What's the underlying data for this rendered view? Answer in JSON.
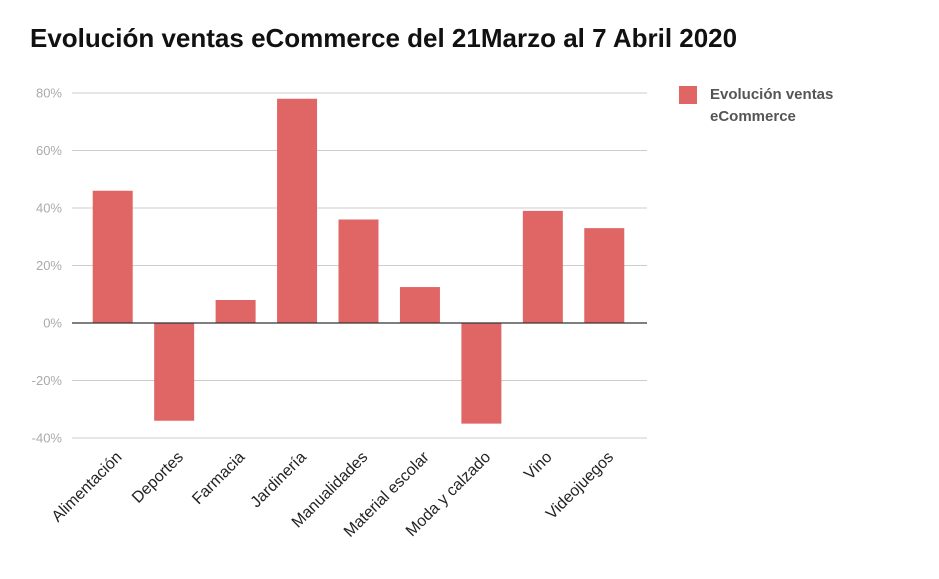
{
  "chart_data": {
    "type": "bar",
    "title": "Evolución ventas eCommerce del 21Marzo al 7 Abril 2020",
    "categories": [
      "Alimentación",
      "Deportes",
      "Farmacia",
      "Jardinería",
      "Manualidades",
      "Material escolar",
      "Moda y calzado",
      "Vino",
      "Videojuegos"
    ],
    "series": [
      {
        "name": "Evolución ventas eCommerce",
        "color": "#e06666",
        "values": [
          46,
          -34,
          8,
          78,
          36,
          12.5,
          -35,
          39,
          33
        ]
      }
    ],
    "ylim": [
      -40,
      80
    ],
    "yticks": [
      {
        "value": -40,
        "label": "-40%"
      },
      {
        "value": -20,
        "label": "-20%"
      },
      {
        "value": 0,
        "label": "0%"
      },
      {
        "value": 20,
        "label": "20%"
      },
      {
        "value": 40,
        "label": "40%"
      },
      {
        "value": 60,
        "label": "60%"
      },
      {
        "value": 80,
        "label": "80%"
      }
    ],
    "grid": true,
    "legend": "right"
  }
}
